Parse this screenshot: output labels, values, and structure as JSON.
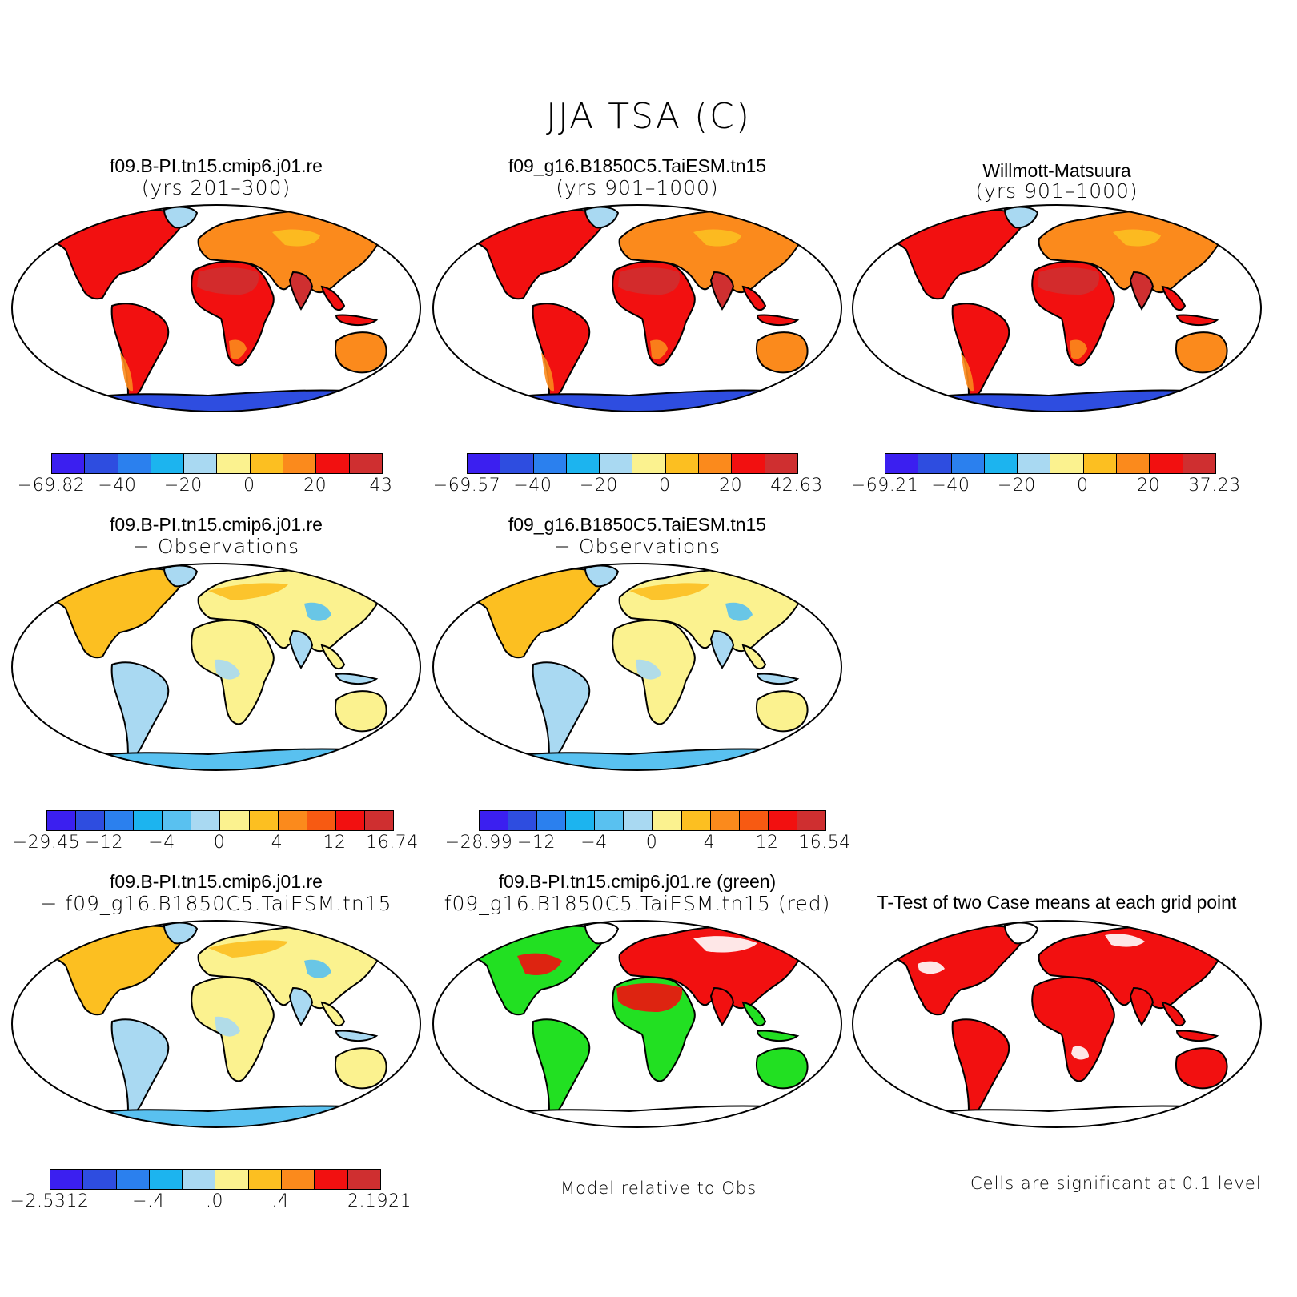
{
  "title": "JJA TSA (C)",
  "colors": {
    "abs": [
      "#3b1ff0",
      "#2e4de0",
      "#2b80ee",
      "#1cb4ef",
      "#a9d9f2",
      "#fbf28f",
      "#fcbf21",
      "#fb8a1c",
      "#f21010",
      "#cf2f30"
    ],
    "diff": [
      "#3b1ff0",
      "#2e4de0",
      "#2b80ee",
      "#1cb4ef",
      "#59c1f0",
      "#a9d9f2",
      "#fbf28f",
      "#fcbf21",
      "#fb8a1c",
      "#f75a12",
      "#f21010",
      "#cf2f30"
    ]
  },
  "panels": {
    "p1": {
      "title1": "f09.B-PI.tn15.cmip6.j01.re",
      "title2": "(yrs 201–300)",
      "labels": [
        "−69.82",
        "−40",
        "−20",
        "0",
        "20",
        "43"
      ]
    },
    "p2": {
      "title1": "f09_g16.B1850C5.TaiESM.tn15",
      "title2": "(yrs 901–1000)",
      "labels": [
        "−69.57",
        "−40",
        "−20",
        "0",
        "20",
        "42.63"
      ]
    },
    "p3": {
      "title1": "Willmott-Matsuura",
      "title2": "(yrs 901–1000)",
      "labels": [
        "−69.21",
        "−40",
        "−20",
        "0",
        "20",
        "37.23"
      ]
    },
    "p4": {
      "title1": "f09.B-PI.tn15.cmip6.j01.re",
      "title2": "− Observations",
      "labels": [
        "−29.45",
        "−12",
        "−4",
        "0",
        "4",
        "12",
        "16.74"
      ]
    },
    "p5": {
      "title1": "f09_g16.B1850C5.TaiESM.tn15",
      "title2": "− Observations",
      "labels": [
        "−28.99",
        "−12",
        "−4",
        "0",
        "4",
        "12",
        "16.54"
      ]
    },
    "p7": {
      "title1": "f09.B-PI.tn15.cmip6.j01.re",
      "title2": "− f09_g16.B1850C5.TaiESM.tn15",
      "labels": [
        "−2.5312",
        "−.4",
        ".0",
        ".4",
        "2.1921"
      ]
    },
    "p8": {
      "title1": "f09.B-PI.tn15.cmip6.j01.re (green)",
      "title2": "f09_g16.B1850C5.TaiESM.tn15 (red)",
      "note": "Model relative to Obs"
    },
    "p9": {
      "title1": "T-Test of two Case means at each grid point",
      "note": "Cells are significant at 0.1 level"
    }
  }
}
